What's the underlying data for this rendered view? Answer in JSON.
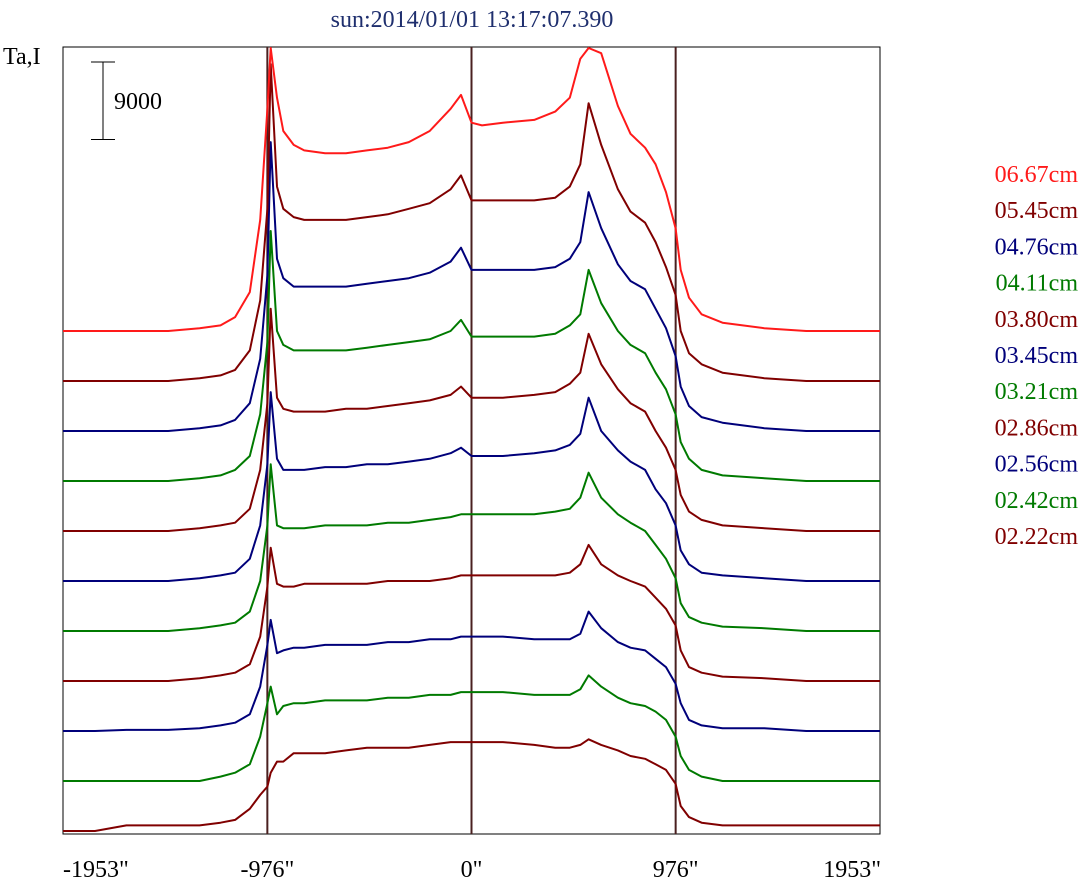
{
  "title": "sun:2014/01/01 13:17:07.390",
  "colors": {
    "title": "#1f2f6e",
    "frame": "#000000",
    "ref_lines": "#4a2020",
    "red": "#ff1a1a",
    "maroon": "#800000",
    "navy": "#00007a",
    "green": "#007a00"
  },
  "chart_data": {
    "type": "line",
    "title": "sun:2014/01/01 13:17:07.390",
    "ylabel": "Ta,I",
    "xlabel": "",
    "scale_bar_label": "9000",
    "scale_bar_value": 9000,
    "xlim": [
      -1953,
      1953
    ],
    "x_ticks": [
      -1953,
      -976,
      0,
      976,
      1953
    ],
    "x_tick_labels": [
      "-1953\"",
      "-976\"",
      "0\"",
      "976\"",
      "1953\""
    ],
    "vertical_reference_lines": [
      -976,
      0,
      976
    ],
    "grid": false,
    "legend_position": "right",
    "y_axis_ticks_shown": false,
    "stacking": "each series offset upward by a constant step, shortest wavelength at bottom",
    "x": [
      -1953,
      -1800,
      -1650,
      -1450,
      -1300,
      -1200,
      -1130,
      -1060,
      -1010,
      -976,
      -960,
      -930,
      -900,
      -850,
      -800,
      -700,
      -600,
      -500,
      -400,
      -300,
      -200,
      -100,
      -50,
      0,
      50,
      150,
      300,
      400,
      470,
      520,
      560,
      620,
      700,
      760,
      830,
      880,
      930,
      976,
      1000,
      1040,
      1100,
      1200,
      1400,
      1600,
      1953
    ],
    "series": [
      {
        "name": "02.22cm",
        "color_key": "maroon",
        "baseline_offset": 0,
        "values": [
          0,
          0,
          1000,
          1000,
          1000,
          1500,
          2000,
          4000,
          6500,
          8000,
          10500,
          12500,
          12500,
          14000,
          14000,
          14000,
          14500,
          15000,
          15000,
          15000,
          15500,
          16000,
          16000,
          16000,
          16000,
          16000,
          15500,
          15000,
          15000,
          15500,
          16500,
          15500,
          14500,
          13500,
          13000,
          12000,
          11000,
          8500,
          4500,
          2500,
          1500,
          1000,
          1000,
          1000,
          1000
        ]
      },
      {
        "name": "02.42cm",
        "color_key": "green",
        "baseline_offset": 9000,
        "values": [
          0,
          0,
          0,
          0,
          0,
          800,
          1500,
          3000,
          8000,
          14000,
          17000,
          12000,
          13500,
          14000,
          14000,
          14500,
          14500,
          14500,
          15000,
          15000,
          15500,
          15500,
          16000,
          16000,
          16000,
          16000,
          15500,
          15500,
          15500,
          16500,
          19000,
          17000,
          15000,
          14000,
          13500,
          12500,
          11000,
          8000,
          4500,
          2000,
          800,
          0,
          0,
          0,
          0
        ]
      },
      {
        "name": "02.56cm",
        "color_key": "navy",
        "baseline_offset": 18000,
        "values": [
          0,
          0,
          200,
          200,
          500,
          1000,
          1500,
          3000,
          8000,
          15500,
          20000,
          14000,
          14500,
          15000,
          15000,
          15500,
          15500,
          15500,
          16000,
          16000,
          16500,
          16500,
          17000,
          17000,
          17000,
          17000,
          16500,
          16500,
          16500,
          17500,
          21500,
          18500,
          16000,
          15000,
          14500,
          13000,
          11500,
          8500,
          5000,
          2000,
          1000,
          500,
          500,
          0,
          0
        ]
      },
      {
        "name": "02.86cm",
        "color_key": "maroon",
        "baseline_offset": 27000,
        "values": [
          0,
          0,
          0,
          0,
          500,
          1000,
          1500,
          3000,
          8000,
          17000,
          24000,
          17500,
          17000,
          17000,
          17500,
          17500,
          17500,
          17500,
          18000,
          18000,
          18000,
          18500,
          19000,
          19000,
          19000,
          19000,
          19000,
          19000,
          19500,
          21000,
          24500,
          21000,
          19000,
          18000,
          17000,
          15000,
          13000,
          10000,
          5500,
          2500,
          1500,
          800,
          500,
          0,
          0
        ]
      },
      {
        "name": "03.21cm",
        "color_key": "green",
        "baseline_offset": 36000,
        "values": [
          0,
          0,
          0,
          0,
          500,
          1000,
          1500,
          3500,
          9000,
          19000,
          30000,
          19000,
          18500,
          18500,
          18500,
          19000,
          19000,
          19000,
          19500,
          19500,
          20000,
          20500,
          21000,
          21000,
          21000,
          21000,
          21000,
          21500,
          22000,
          24000,
          28500,
          24000,
          21000,
          19500,
          18000,
          15500,
          13000,
          9500,
          5000,
          2500,
          1500,
          800,
          500,
          0,
          0
        ]
      },
      {
        "name": "03.45cm",
        "color_key": "navy",
        "baseline_offset": 45000,
        "values": [
          0,
          0,
          0,
          0,
          500,
          1000,
          1500,
          4000,
          10000,
          21000,
          34000,
          22000,
          20000,
          20000,
          20000,
          20500,
          20500,
          21000,
          21000,
          21500,
          22000,
          23000,
          24000,
          22500,
          22500,
          22500,
          23000,
          23500,
          24500,
          26500,
          33000,
          27000,
          23500,
          21500,
          20000,
          16500,
          14000,
          10000,
          5500,
          3000,
          1500,
          1000,
          500,
          0,
          0
        ]
      },
      {
        "name": "03.80cm",
        "color_key": "maroon",
        "baseline_offset": 54000,
        "values": [
          0,
          0,
          0,
          0,
          500,
          1000,
          1500,
          4000,
          11000,
          23000,
          40000,
          24000,
          22000,
          21500,
          21500,
          21500,
          22000,
          22000,
          22500,
          23000,
          23500,
          24500,
          26000,
          24000,
          24000,
          24000,
          24500,
          25000,
          26500,
          28500,
          35500,
          30000,
          25500,
          23000,
          21500,
          18000,
          15000,
          11000,
          6500,
          3500,
          2000,
          1000,
          500,
          0,
          0
        ]
      },
      {
        "name": "04.11cm",
        "color_key": "green",
        "baseline_offset": 63000,
        "values": [
          0,
          0,
          0,
          0,
          500,
          1000,
          2000,
          4500,
          12000,
          25000,
          45000,
          27000,
          24500,
          23500,
          23500,
          23500,
          23500,
          24000,
          24500,
          25000,
          25500,
          27000,
          29000,
          26000,
          26000,
          26000,
          26000,
          26500,
          28000,
          30000,
          38000,
          32000,
          27000,
          24500,
          23000,
          19500,
          16500,
          12000,
          7000,
          4000,
          2000,
          1000,
          500,
          0,
          0
        ]
      },
      {
        "name": "04.76cm",
        "color_key": "navy",
        "baseline_offset": 72000,
        "values": [
          0,
          0,
          0,
          0,
          500,
          1000,
          2000,
          5000,
          13000,
          28000,
          52000,
          31000,
          27500,
          26000,
          26000,
          26000,
          26000,
          26500,
          27000,
          27500,
          28500,
          30500,
          33000,
          29000,
          29000,
          29000,
          29000,
          29500,
          31000,
          34000,
          43000,
          36500,
          30000,
          27000,
          25500,
          22000,
          18500,
          13500,
          8000,
          4500,
          2500,
          1500,
          500,
          0,
          0
        ]
      },
      {
        "name": "05.45cm",
        "color_key": "maroon",
        "baseline_offset": 81000,
        "values": [
          0,
          0,
          0,
          0,
          500,
          1000,
          2000,
          5500,
          14500,
          31000,
          57000,
          35000,
          31000,
          29500,
          29000,
          29000,
          29000,
          29500,
          30000,
          31000,
          32000,
          34500,
          37000,
          32500,
          32500,
          32500,
          32500,
          33000,
          35000,
          39000,
          50000,
          42500,
          34500,
          30500,
          28500,
          25000,
          20500,
          15500,
          9000,
          5000,
          3000,
          1500,
          500,
          0,
          0
        ]
      },
      {
        "name": "06.67cm",
        "color_key": "red",
        "baseline_offset": 90000,
        "values": [
          0,
          0,
          0,
          0,
          500,
          1000,
          2500,
          7000,
          20000,
          40000,
          66000,
          42000,
          36000,
          33500,
          32500,
          32000,
          32000,
          32500,
          33000,
          34000,
          36000,
          40000,
          42500,
          37500,
          37000,
          37500,
          38000,
          39500,
          42000,
          49000,
          59000,
          50000,
          40500,
          35500,
          33000,
          30000,
          25000,
          18500,
          11000,
          6000,
          3000,
          1500,
          500,
          0,
          0
        ]
      }
    ]
  }
}
